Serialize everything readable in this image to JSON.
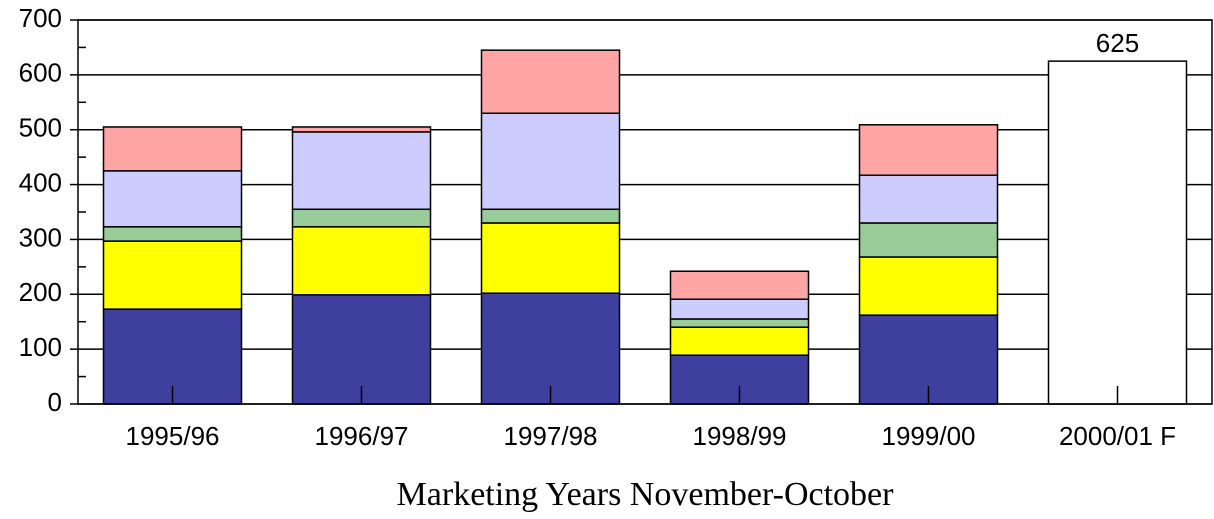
{
  "chart_data": {
    "type": "bar",
    "stacked": true,
    "x_label": "Marketing Years November-October",
    "categories": [
      "1995/96",
      "1996/97",
      "1997/98",
      "1998/99",
      "1999/00",
      "2000/01 F"
    ],
    "series": [
      {
        "color": "#3f3f9f",
        "values": [
          173,
          199,
          202,
          89,
          162,
          null
        ]
      },
      {
        "color": "#ffff00",
        "values": [
          124,
          124,
          128,
          51,
          106,
          null
        ]
      },
      {
        "color": "#99cc99",
        "values": [
          26,
          32,
          25,
          15,
          62,
          null
        ]
      },
      {
        "color": "#ccccff",
        "values": [
          102,
          141,
          175,
          36,
          87,
          null
        ]
      },
      {
        "color": "#ffa5a5",
        "values": [
          80,
          9,
          115,
          51,
          92,
          null
        ]
      },
      {
        "color": "#ffffff",
        "values": [
          null,
          null,
          null,
          null,
          null,
          625
        ],
        "show_value_labels": true
      }
    ],
    "ylim": [
      0,
      700
    ],
    "yticks": [
      0,
      100,
      200,
      300,
      400,
      500,
      600,
      700
    ],
    "grid": true
  }
}
